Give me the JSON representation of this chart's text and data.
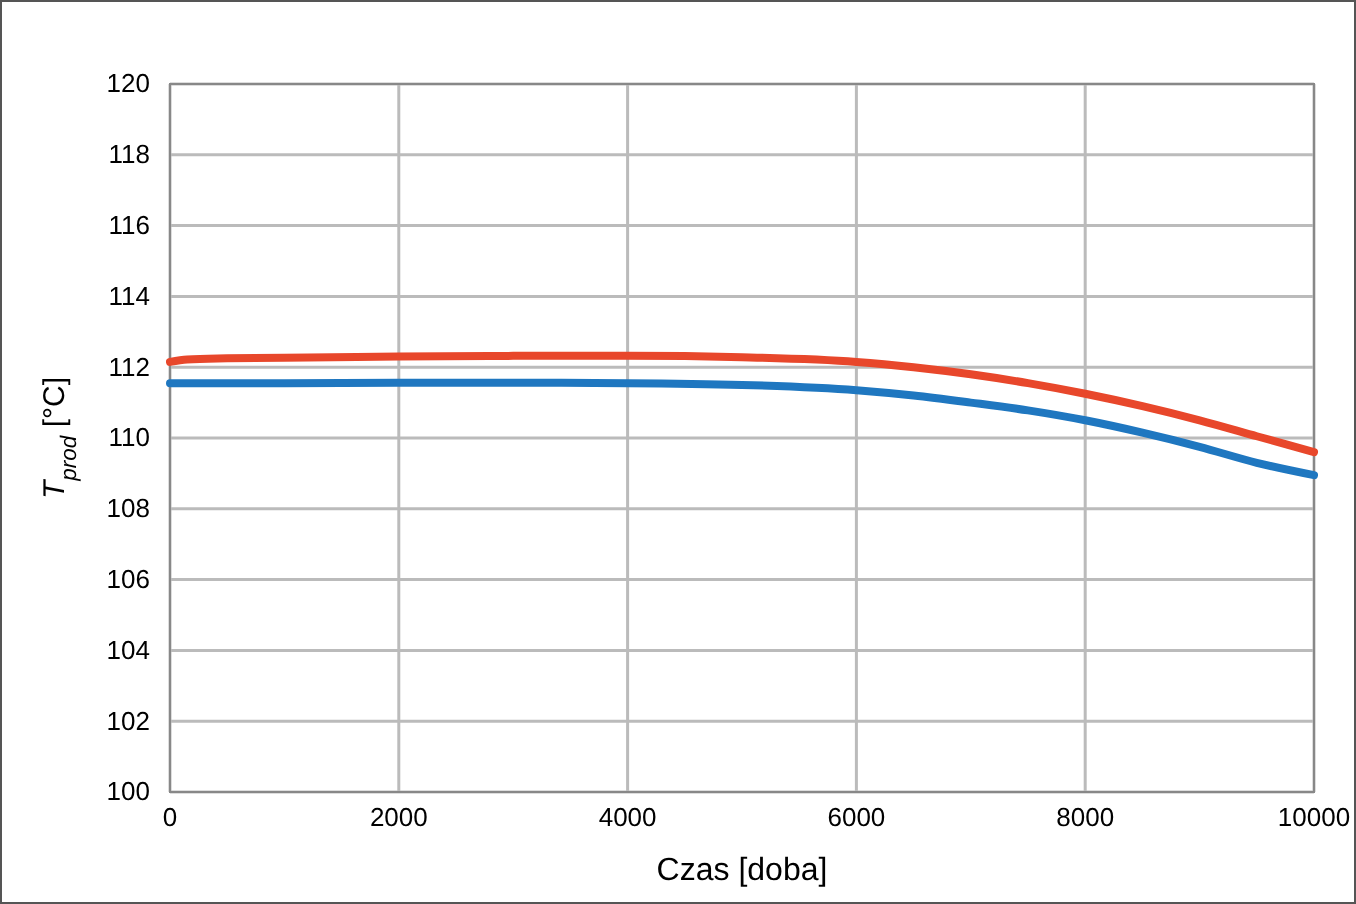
{
  "chart_data": {
    "type": "line",
    "xlabel": "Czas [doba]",
    "ylabel": "T$_{prod}$ [°C]",
    "xlim": [
      0,
      10000
    ],
    "xticks": [
      0,
      2000,
      4000,
      6000,
      8000,
      10000
    ],
    "ylim": [
      100,
      120
    ],
    "yticks": [
      100,
      102,
      104,
      106,
      108,
      110,
      112,
      114,
      116,
      118,
      120
    ],
    "grid": true,
    "marker": "none",
    "line_style": "solid",
    "series": [
      {
        "color": "#e8472b",
        "x": [
          0,
          150,
          500,
          1000,
          2000,
          3000,
          4000,
          5000,
          6000,
          6500,
          7000,
          7500,
          8000,
          8500,
          9000,
          9500,
          10000
        ],
        "values": [
          112.15,
          112.22,
          112.25,
          112.27,
          112.3,
          112.32,
          112.32,
          112.28,
          112.15,
          112.0,
          111.8,
          111.55,
          111.25,
          110.9,
          110.5,
          110.05,
          109.6
        ]
      },
      {
        "color": "#1f77c0",
        "x": [
          0,
          500,
          1000,
          2000,
          3000,
          4000,
          5000,
          6000,
          6500,
          7000,
          7500,
          8000,
          8500,
          9000,
          9500,
          10000
        ],
        "values": [
          111.55,
          111.55,
          111.55,
          111.56,
          111.56,
          111.55,
          111.5,
          111.35,
          111.2,
          111.0,
          110.78,
          110.5,
          110.15,
          109.75,
          109.3,
          108.95
        ]
      }
    ]
  }
}
